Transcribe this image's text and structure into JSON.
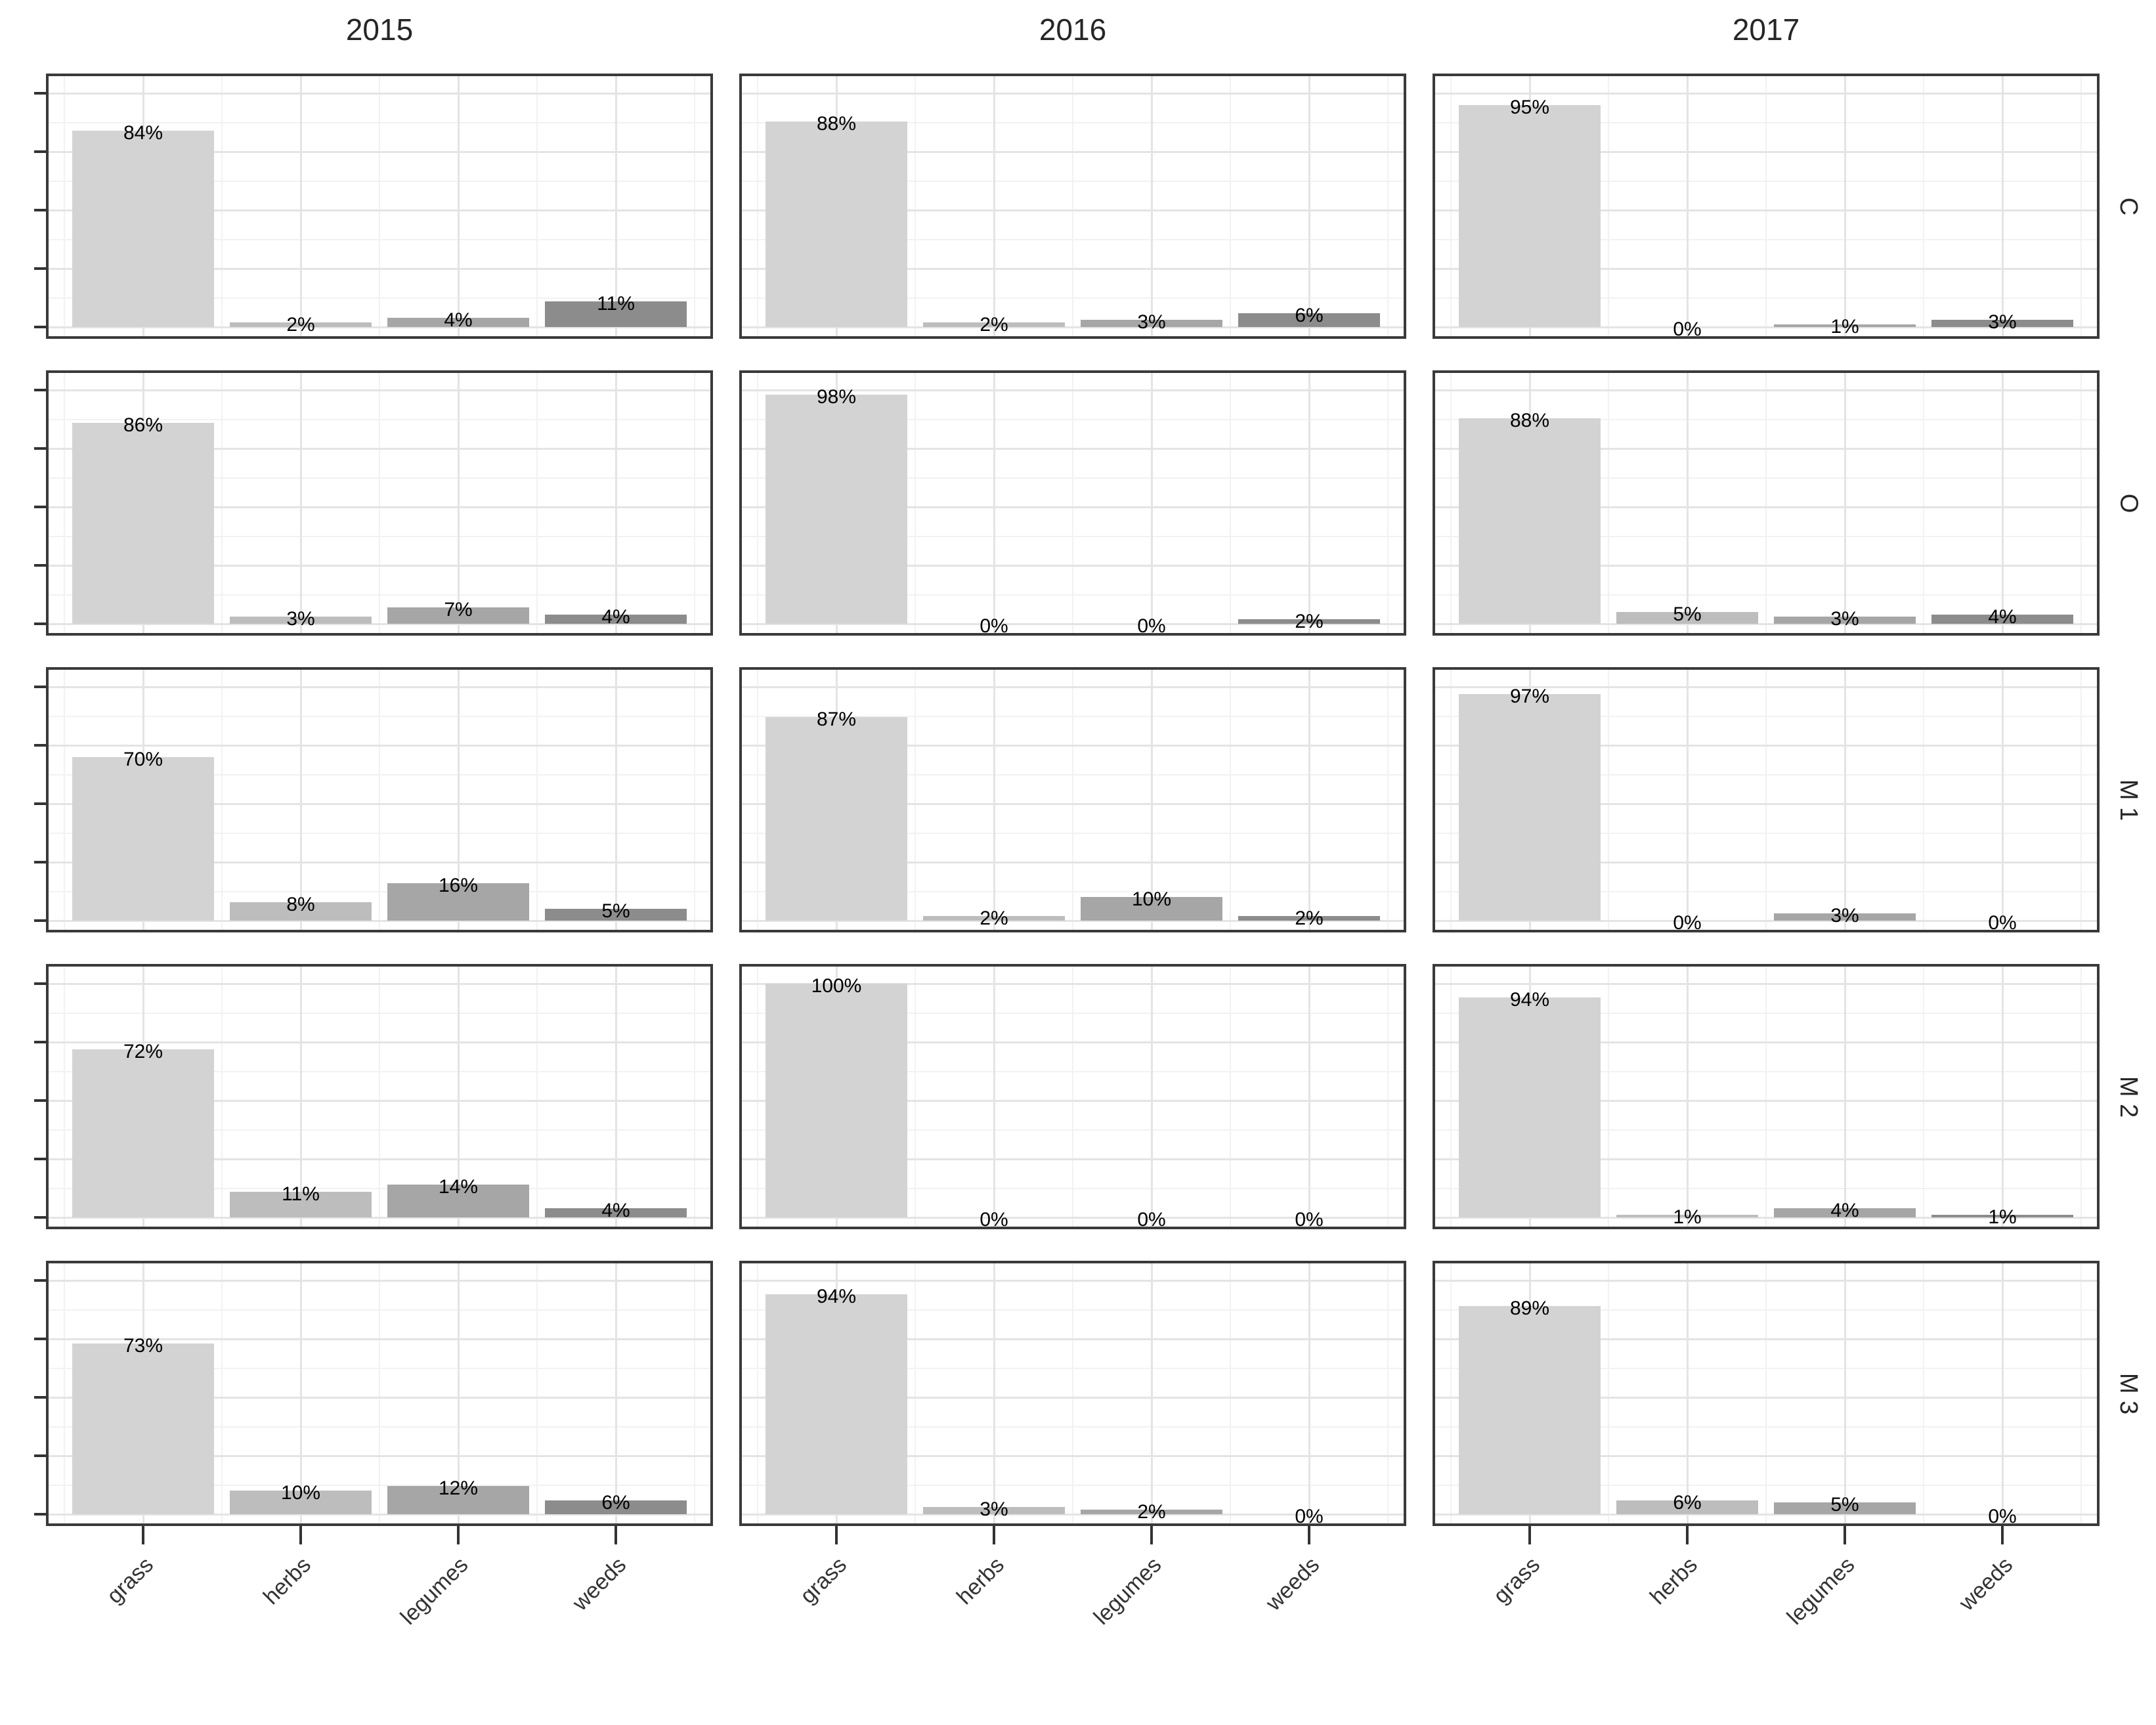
{
  "chart_data": {
    "type": "bar",
    "title": "",
    "xlabel": "",
    "ylabel": "",
    "unit": "%",
    "facet_columns": [
      "2015",
      "2016",
      "2017"
    ],
    "facet_rows": [
      "C",
      "O",
      "M 1",
      "M 2",
      "M 3"
    ],
    "categories": [
      "grass",
      "herbs",
      "legumes",
      "weeds"
    ],
    "ylim": [
      0,
      100
    ],
    "y_major_ticks": [
      0,
      25,
      50,
      75,
      100
    ],
    "y_minor_ticks": [
      12.5,
      37.5,
      62.5,
      87.5
    ],
    "y_tick_labels_shown": false,
    "grid": true,
    "legend_position": "none",
    "facets": [
      {
        "row": "C",
        "col": "2015",
        "values": [
          84,
          2,
          4,
          11
        ],
        "labels": [
          "84%",
          "2%",
          "4%",
          "11%"
        ]
      },
      {
        "row": "C",
        "col": "2016",
        "values": [
          88,
          2,
          3,
          6
        ],
        "labels": [
          "88%",
          "2%",
          "3%",
          "6%"
        ]
      },
      {
        "row": "C",
        "col": "2017",
        "values": [
          95,
          0,
          1,
          3
        ],
        "labels": [
          "95%",
          "0%",
          "1%",
          "3%"
        ]
      },
      {
        "row": "O",
        "col": "2015",
        "values": [
          86,
          3,
          7,
          4
        ],
        "labels": [
          "86%",
          "3%",
          "7%",
          "4%"
        ]
      },
      {
        "row": "O",
        "col": "2016",
        "values": [
          98,
          0,
          0,
          2
        ],
        "labels": [
          "98%",
          "0%",
          "0%",
          "2%"
        ]
      },
      {
        "row": "O",
        "col": "2017",
        "values": [
          88,
          5,
          3,
          4
        ],
        "labels": [
          "88%",
          "5%",
          "3%",
          "4%"
        ]
      },
      {
        "row": "M 1",
        "col": "2015",
        "values": [
          70,
          8,
          16,
          5
        ],
        "labels": [
          "70%",
          "8%",
          "16%",
          "5%"
        ]
      },
      {
        "row": "M 1",
        "col": "2016",
        "values": [
          87,
          2,
          10,
          2
        ],
        "labels": [
          "87%",
          "2%",
          "10%",
          "2%"
        ]
      },
      {
        "row": "M 1",
        "col": "2017",
        "values": [
          97,
          0,
          3,
          0
        ],
        "labels": [
          "97%",
          "0%",
          "3%",
          "0%"
        ]
      },
      {
        "row": "M 2",
        "col": "2015",
        "values": [
          72,
          11,
          14,
          4
        ],
        "labels": [
          "72%",
          "11%",
          "14%",
          "4%"
        ]
      },
      {
        "row": "M 2",
        "col": "2016",
        "values": [
          100,
          0,
          0,
          0
        ],
        "labels": [
          "100%",
          "0%",
          "0%",
          "0%"
        ]
      },
      {
        "row": "M 2",
        "col": "2017",
        "values": [
          94,
          1,
          4,
          1
        ],
        "labels": [
          "94%",
          "1%",
          "4%",
          "1%"
        ]
      },
      {
        "row": "M 3",
        "col": "2015",
        "values": [
          73,
          10,
          12,
          6
        ],
        "labels": [
          "73%",
          "10%",
          "12%",
          "6%"
        ]
      },
      {
        "row": "M 3",
        "col": "2016",
        "values": [
          94,
          3,
          2,
          0
        ],
        "labels": [
          "94%",
          "3%",
          "2%",
          "0%"
        ]
      },
      {
        "row": "M 3",
        "col": "2017",
        "values": [
          89,
          6,
          5,
          0
        ],
        "labels": [
          "89%",
          "6%",
          "5%",
          "0%"
        ]
      }
    ],
    "bar_colors": [
      "#d3d3d3",
      "#bdbdbd",
      "#a6a6a6",
      "#8c8c8c"
    ],
    "style_colors": {
      "panel_border": "#3a3a3a",
      "grid_major": "#e4e4e4",
      "grid_minor": "#f2f2f2",
      "tick": "#333333",
      "axis_text": "#333333",
      "label_text": "#000000",
      "title_text": "#262626"
    }
  }
}
